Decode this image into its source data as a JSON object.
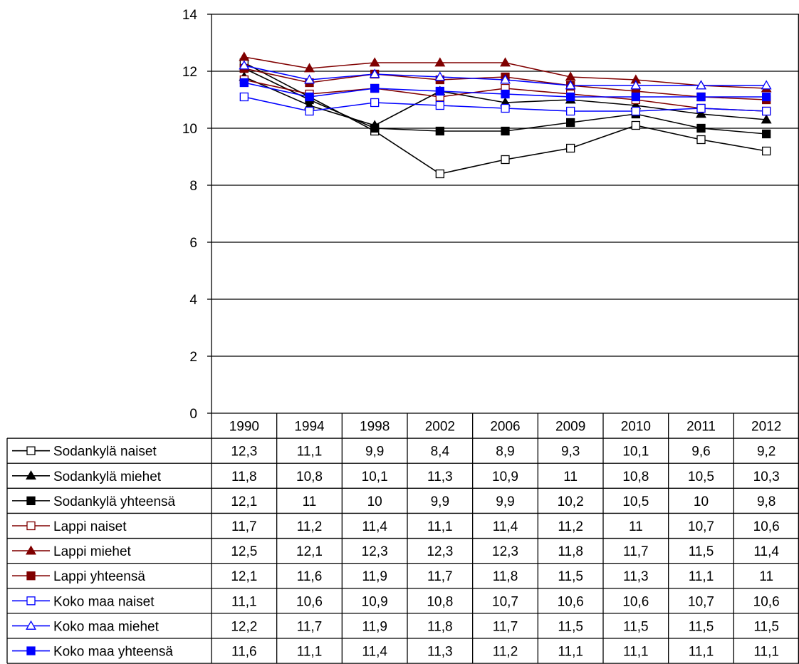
{
  "chart_data": {
    "type": "line",
    "title": "",
    "xlabel": "",
    "ylabel": "",
    "ylim": [
      0,
      14
    ],
    "yticks": [
      0,
      2,
      4,
      6,
      8,
      10,
      12,
      14
    ],
    "grid": true,
    "legend": "data-table-below",
    "categories": [
      "1990",
      "1994",
      "1998",
      "2002",
      "2006",
      "2009",
      "2010",
      "2011",
      "2012"
    ],
    "series": [
      {
        "name": "Sodankylä naiset",
        "color": "#000000",
        "marker": "square-open",
        "values": [
          12.3,
          11.1,
          9.9,
          8.4,
          8.9,
          9.3,
          10.1,
          9.6,
          9.2
        ],
        "labels": [
          "12,3",
          "11,1",
          "9,9",
          "8,4",
          "8,9",
          "9,3",
          "10,1",
          "9,6",
          "9,2"
        ]
      },
      {
        "name": "Sodankylä miehet",
        "color": "#000000",
        "marker": "triangle-filled",
        "values": [
          11.8,
          10.8,
          10.1,
          11.3,
          10.9,
          11,
          10.8,
          10.5,
          10.3
        ],
        "labels": [
          "11,8",
          "10,8",
          "10,1",
          "11,3",
          "10,9",
          "11",
          "10,8",
          "10,5",
          "10,3"
        ]
      },
      {
        "name": "Sodankylä yhteensä",
        "color": "#000000",
        "marker": "square-filled",
        "values": [
          12.1,
          11,
          10,
          9.9,
          9.9,
          10.2,
          10.5,
          10,
          9.8
        ],
        "labels": [
          "12,1",
          "11",
          "10",
          "9,9",
          "9,9",
          "10,2",
          "10,5",
          "10",
          "9,8"
        ]
      },
      {
        "name": "Lappi naiset",
        "color": "#800000",
        "marker": "square-open",
        "values": [
          11.7,
          11.2,
          11.4,
          11.1,
          11.4,
          11.2,
          11,
          10.7,
          10.6
        ],
        "labels": [
          "11,7",
          "11,2",
          "11,4",
          "11,1",
          "11,4",
          "11,2",
          "11",
          "10,7",
          "10,6"
        ]
      },
      {
        "name": "Lappi miehet",
        "color": "#800000",
        "marker": "triangle-filled",
        "values": [
          12.5,
          12.1,
          12.3,
          12.3,
          12.3,
          11.8,
          11.7,
          11.5,
          11.4
        ],
        "labels": [
          "12,5",
          "12,1",
          "12,3",
          "12,3",
          "12,3",
          "11,8",
          "11,7",
          "11,5",
          "11,4"
        ]
      },
      {
        "name": "Lappi yhteensä",
        "color": "#800000",
        "marker": "square-filled",
        "values": [
          12.1,
          11.6,
          11.9,
          11.7,
          11.8,
          11.5,
          11.3,
          11.1,
          11
        ],
        "labels": [
          "12,1",
          "11,6",
          "11,9",
          "11,7",
          "11,8",
          "11,5",
          "11,3",
          "11,1",
          "11"
        ]
      },
      {
        "name": "Koko maa naiset",
        "color": "#0000ff",
        "marker": "square-open",
        "values": [
          11.1,
          10.6,
          10.9,
          10.8,
          10.7,
          10.6,
          10.6,
          10.7,
          10.6
        ],
        "labels": [
          "11,1",
          "10,6",
          "10,9",
          "10,8",
          "10,7",
          "10,6",
          "10,6",
          "10,7",
          "10,6"
        ]
      },
      {
        "name": "Koko maa miehet",
        "color": "#0000ff",
        "marker": "triangle-open",
        "values": [
          12.2,
          11.7,
          11.9,
          11.8,
          11.7,
          11.5,
          11.5,
          11.5,
          11.5
        ],
        "labels": [
          "12,2",
          "11,7",
          "11,9",
          "11,8",
          "11,7",
          "11,5",
          "11,5",
          "11,5",
          "11,5"
        ]
      },
      {
        "name": "Koko maa yhteensä",
        "color": "#0000ff",
        "marker": "square-filled",
        "values": [
          11.6,
          11.1,
          11.4,
          11.3,
          11.2,
          11.1,
          11.1,
          11.1,
          11.1
        ],
        "labels": [
          "11,6",
          "11,1",
          "11,4",
          "11,3",
          "11,2",
          "11,1",
          "11,1",
          "11,1",
          "11,1"
        ]
      }
    ]
  }
}
